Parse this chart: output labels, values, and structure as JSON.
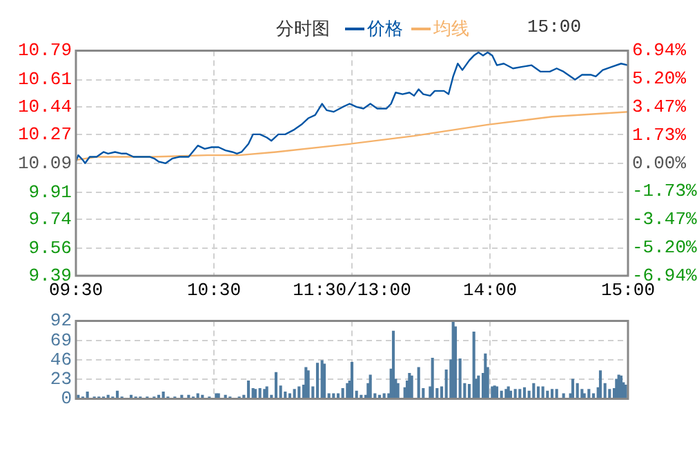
{
  "chart_data": [
    {
      "type": "line",
      "title": "分时图",
      "legend": "top",
      "marker": "none",
      "grid": true,
      "annotations": [
        "15:00"
      ],
      "categories": [
        "09:30",
        null,
        null,
        null,
        null,
        null,
        null,
        null,
        null,
        null,
        null,
        null,
        null,
        null,
        null,
        null,
        null,
        null,
        null,
        null,
        null,
        null,
        null,
        null,
        null,
        null,
        null,
        null,
        null,
        null,
        null,
        null,
        null,
        null,
        null,
        null,
        null,
        null,
        null,
        null,
        null,
        null,
        null,
        null,
        null,
        null,
        null,
        null,
        null,
        null,
        null,
        null,
        null,
        null,
        null,
        null,
        null,
        null,
        null,
        null,
        "10:30",
        null,
        null,
        null,
        null,
        null,
        null,
        null,
        null,
        null,
        null,
        null,
        null,
        null,
        null,
        null,
        null,
        null,
        null,
        null,
        null,
        null,
        null,
        null,
        null,
        null,
        null,
        null,
        null,
        null,
        null,
        null,
        null,
        null,
        null,
        null,
        null,
        null,
        null,
        null,
        null,
        null,
        null,
        null,
        null,
        null,
        null,
        null,
        null,
        null,
        null,
        null,
        null,
        null,
        null,
        null,
        null,
        null,
        null,
        null,
        "11:30/13:00",
        null,
        null,
        null,
        null,
        null,
        null,
        null,
        null,
        null,
        null,
        null,
        null,
        null,
        null,
        null,
        null,
        null,
        null,
        null,
        null,
        null,
        null,
        null,
        null,
        null,
        null,
        null,
        null,
        null,
        null,
        null,
        null,
        null,
        null,
        null,
        null,
        null,
        null,
        null,
        null,
        null,
        null,
        null,
        null,
        null,
        null,
        null,
        null,
        null,
        null,
        null,
        null,
        null,
        null,
        null,
        null,
        null,
        null,
        null,
        "14:00",
        null,
        null,
        null,
        null,
        null,
        null,
        null,
        null,
        null,
        null,
        null,
        null,
        null,
        null,
        null,
        null,
        null,
        null,
        null,
        null,
        null,
        null,
        null,
        null,
        null,
        null,
        null,
        null,
        null,
        null,
        null,
        null,
        null,
        null,
        null,
        null,
        null,
        null,
        null,
        null,
        null,
        null,
        null,
        null,
        null,
        null,
        null,
        null,
        null,
        null,
        null,
        null,
        null,
        null,
        null,
        null,
        null,
        null,
        null,
        "15:00"
      ],
      "ylim": [
        9.39,
        10.79
      ],
      "yticks": [
        9.39,
        9.56,
        9.74,
        9.91,
        10.09,
        10.27,
        10.44,
        10.61,
        10.79
      ],
      "y2lim": [
        -6.94,
        6.94
      ],
      "y2ticks": [
        {
          "value": -6.94,
          "label": "-6.94%"
        },
        {
          "value": -5.2,
          "label": "-5.20%"
        },
        {
          "value": -3.47,
          "label": "-3.47%"
        },
        {
          "value": -1.73,
          "label": "-1.73%"
        },
        {
          "value": 0,
          "label": "0.00%"
        },
        {
          "value": 1.73,
          "label": "1.73%"
        },
        {
          "value": 3.47,
          "label": "3.47%"
        },
        {
          "value": 5.2,
          "label": "5.20%"
        },
        {
          "value": 6.94,
          "label": "6.94%"
        }
      ],
      "series": [
        {
          "name": "价格",
          "color": "#0055a5",
          "values": [
            10.1,
            10.14,
            null,
            10.11,
            10.09,
            null,
            10.13,
            null,
            null,
            10.13,
            null,
            null,
            10.16,
            null,
            10.15,
            null,
            null,
            10.16,
            null,
            null,
            10.15,
            null,
            10.15,
            null,
            null,
            10.13,
            null,
            null,
            null,
            10.13,
            null,
            null,
            10.13,
            null,
            10.12,
            null,
            10.1,
            null,
            null,
            10.09,
            null,
            null,
            10.12,
            null,
            null,
            10.13,
            null,
            null,
            null,
            10.13,
            null,
            null,
            null,
            10.2,
            null,
            null,
            10.18,
            null,
            null,
            10.19,
            null,
            null,
            10.19,
            null,
            null,
            10.17,
            null,
            null,
            10.16,
            null,
            10.15,
            null,
            10.16,
            null,
            null,
            10.21,
            null,
            10.27,
            null,
            null,
            10.27,
            null,
            null,
            10.25,
            null,
            10.23,
            null,
            null,
            10.27,
            null,
            null,
            10.27,
            null,
            null,
            null,
            10.3,
            null,
            null,
            10.33,
            null,
            null,
            10.37,
            null,
            null,
            10.39,
            null,
            null,
            10.46,
            null,
            10.42,
            null,
            null,
            10.41,
            null,
            null,
            null,
            10.44,
            null,
            null,
            10.46,
            null,
            null,
            10.44,
            null,
            null,
            10.43,
            null,
            null,
            10.46,
            null,
            null,
            10.43,
            null,
            null,
            null,
            10.43,
            null,
            10.46,
            null,
            10.53,
            null,
            null,
            10.52,
            null,
            null,
            10.53,
            null,
            10.51,
            null,
            10.55,
            null,
            10.52,
            null,
            null,
            10.51,
            null,
            10.54,
            null,
            null,
            null,
            10.54,
            null,
            10.52,
            null,
            10.63,
            null,
            10.71,
            null,
            10.67,
            null,
            null,
            10.73,
            null,
            10.76,
            null,
            10.78,
            null,
            10.76,
            null,
            10.78,
            null,
            10.76,
            null,
            10.7,
            null,
            null,
            10.71,
            null,
            null,
            null,
            10.68,
            null,
            null,
            null,
            10.69,
            null,
            null,
            null,
            10.7,
            null,
            null,
            null,
            10.66,
            null,
            null,
            null,
            10.66,
            null,
            null,
            10.68,
            null,
            null,
            10.66,
            null,
            null,
            null,
            null,
            10.61,
            null,
            null,
            10.64,
            null,
            null,
            null,
            10.64,
            null,
            10.63,
            null,
            null,
            10.67,
            null,
            null,
            null,
            10.69,
            null,
            null,
            null,
            10.71,
            null,
            null,
            10.7
          ]
        },
        {
          "name": "均线",
          "color": "#f5b26b",
          "values": [
            10.11,
            null,
            null,
            null,
            null,
            null,
            null,
            null,
            null,
            10.13,
            null,
            null,
            null,
            null,
            null,
            null,
            null,
            null,
            null,
            null,
            null,
            null,
            null,
            null,
            null,
            null,
            null,
            null,
            null,
            null,
            null,
            null,
            null,
            10.13,
            null,
            null,
            null,
            null,
            null,
            null,
            null,
            null,
            null,
            null,
            null,
            null,
            null,
            null,
            null,
            null,
            null,
            null,
            null,
            null,
            null,
            null,
            null,
            10.14,
            null,
            null,
            null,
            null,
            null,
            null,
            null,
            null,
            null,
            null,
            null,
            null,
            null,
            10.14,
            null,
            null,
            null,
            null,
            null,
            null,
            null,
            null,
            null,
            null,
            null,
            null,
            null,
            null,
            null,
            10.16,
            null,
            null,
            null,
            null,
            null,
            null,
            null,
            null,
            null,
            null,
            null,
            null,
            null,
            null,
            null,
            null,
            null,
            null,
            null,
            null,
            null,
            null,
            null,
            null,
            null,
            null,
            null,
            null,
            null,
            null,
            null,
            10.21,
            null,
            null,
            null,
            null,
            null,
            null,
            null,
            null,
            null,
            null,
            null,
            null,
            null,
            null,
            null,
            null,
            null,
            null,
            null,
            null,
            null,
            null,
            null,
            null,
            null,
            null,
            null,
            10.26,
            null,
            null,
            null,
            null,
            null,
            null,
            null,
            null,
            null,
            null,
            null,
            null,
            null,
            null,
            null,
            null,
            null,
            null,
            null,
            null,
            null,
            null,
            null,
            null,
            null,
            null,
            null,
            null,
            null,
            null,
            null,
            10.33,
            null,
            null,
            null,
            null,
            null,
            null,
            null,
            null,
            null,
            null,
            null,
            null,
            null,
            null,
            null,
            null,
            null,
            null,
            null,
            null,
            null,
            null,
            null,
            null,
            null,
            null,
            null,
            10.38,
            null,
            null,
            null,
            null,
            null,
            null,
            null,
            null,
            null,
            null,
            null,
            null,
            null,
            null,
            null,
            null,
            null,
            null,
            null,
            null,
            null,
            null,
            null,
            null,
            null,
            null,
            null,
            null,
            null,
            null,
            null,
            null,
            10.41
          ]
        }
      ]
    },
    {
      "type": "bar",
      "color": "#4f7ba0",
      "grid": true,
      "tick_labels": "y",
      "categories": [
        null,
        null,
        null,
        null,
        null,
        null,
        null,
        null,
        null,
        null,
        null,
        null,
        null,
        null,
        null,
        null,
        null,
        null,
        null,
        null,
        null,
        null,
        null,
        null,
        null,
        null,
        null,
        null,
        null,
        null,
        null,
        null,
        null,
        null,
        null,
        null,
        null,
        null,
        null,
        null,
        null,
        null,
        null,
        null,
        null,
        null,
        null,
        null,
        null,
        null,
        null,
        null,
        null,
        null,
        null,
        null,
        null,
        null,
        null,
        null,
        null,
        null,
        null,
        null,
        null,
        null,
        null,
        null,
        null,
        null,
        null,
        null,
        null,
        null,
        null,
        null,
        null,
        null,
        null,
        null,
        null,
        null,
        null,
        null,
        null,
        null,
        null,
        null,
        null,
        null,
        null,
        null,
        null,
        null,
        null,
        null,
        null,
        null,
        null,
        null,
        null,
        null,
        null,
        null,
        null,
        null,
        null,
        null,
        null,
        null,
        null,
        null,
        null,
        null,
        null,
        null,
        null,
        null,
        null,
        null,
        null,
        null,
        null,
        null,
        null,
        null,
        null,
        null,
        null,
        null,
        null,
        null,
        null,
        null,
        null,
        null,
        null,
        null,
        null,
        null,
        null,
        null,
        null,
        null,
        null,
        null,
        null,
        null,
        null,
        null,
        null,
        null,
        null,
        null,
        null,
        null,
        null,
        null,
        null,
        null,
        null,
        null,
        null,
        null,
        null,
        null,
        null,
        null,
        null,
        null,
        null,
        null,
        null,
        null,
        null,
        null,
        null,
        null,
        null,
        null,
        null,
        null,
        null,
        null,
        null,
        null,
        null,
        null,
        null,
        null,
        null,
        null,
        null,
        null,
        null,
        null,
        null,
        null,
        null,
        null,
        null,
        null,
        null,
        null,
        null,
        null,
        null,
        null,
        null,
        null,
        null,
        null,
        null,
        null,
        null,
        null,
        null,
        null,
        null,
        null,
        null,
        null,
        null,
        null,
        null,
        null,
        null,
        null,
        null,
        null,
        null,
        null,
        null,
        null,
        null,
        null,
        null,
        null,
        null,
        null,
        null
      ],
      "ylim": [
        0,
        92
      ],
      "yticks": [
        0,
        23,
        46,
        69,
        92
      ],
      "values": [
        null,
        4,
        null,
        2,
        null,
        8,
        null,
        null,
        2,
        null,
        2,
        null,
        2,
        null,
        4,
        null,
        2,
        null,
        9,
        null,
        2,
        null,
        null,
        null,
        4,
        null,
        2,
        null,
        2,
        null,
        null,
        2,
        null,
        null,
        2,
        null,
        4,
        null,
        8,
        null,
        2,
        null,
        null,
        2,
        null,
        null,
        4,
        null,
        null,
        4,
        null,
        2,
        null,
        6,
        null,
        4,
        null,
        null,
        2,
        null,
        null,
        6,
        6,
        null,
        null,
        4,
        null,
        2,
        null,
        null,
        null,
        2,
        null,
        4,
        null,
        21,
        null,
        12,
        11,
        null,
        12,
        null,
        11,
        14,
        null,
        4,
        null,
        31,
        null,
        15,
        null,
        8,
        null,
        6,
        null,
        11,
        null,
        14,
        null,
        16,
        37,
        33,
        null,
        14,
        null,
        42,
        null,
        45,
        41,
        null,
        6,
        null,
        6,
        null,
        6,
        null,
        12,
        null,
        18,
        21,
        43,
        null,
        9,
        null,
        4,
        null,
        4,
        18,
        28,
        null,
        6,
        null,
        4,
        null,
        6,
        null,
        6,
        35,
        80,
        23,
        18,
        null,
        null,
        13,
        21,
        30,
        27,
        null,
        null,
        37,
        null,
        12,
        null,
        null,
        14,
        48,
        null,
        12,
        null,
        14,
        null,
        34,
        null,
        46,
        92,
        85,
        null,
        47,
        null,
        18,
        null,
        17,
        null,
        79,
        23,
        27,
        null,
        30,
        53,
        37,
        null,
        14,
        15,
        14,
        null,
        9,
        null,
        11,
        14,
        9,
        null,
        11,
        null,
        11,
        null,
        13,
        null,
        9,
        null,
        18,
        null,
        14,
        null,
        14,
        null,
        9,
        null,
        11,
        null,
        11,
        null,
        null,
        6,
        null,
        null,
        6,
        23,
        null,
        18,
        null,
        11,
        6,
        null,
        11,
        null,
        6,
        null,
        13,
        33,
        null,
        18,
        null,
        11,
        null,
        12,
        23,
        28,
        27,
        19,
        16,
        null
      ]
    }
  ]
}
